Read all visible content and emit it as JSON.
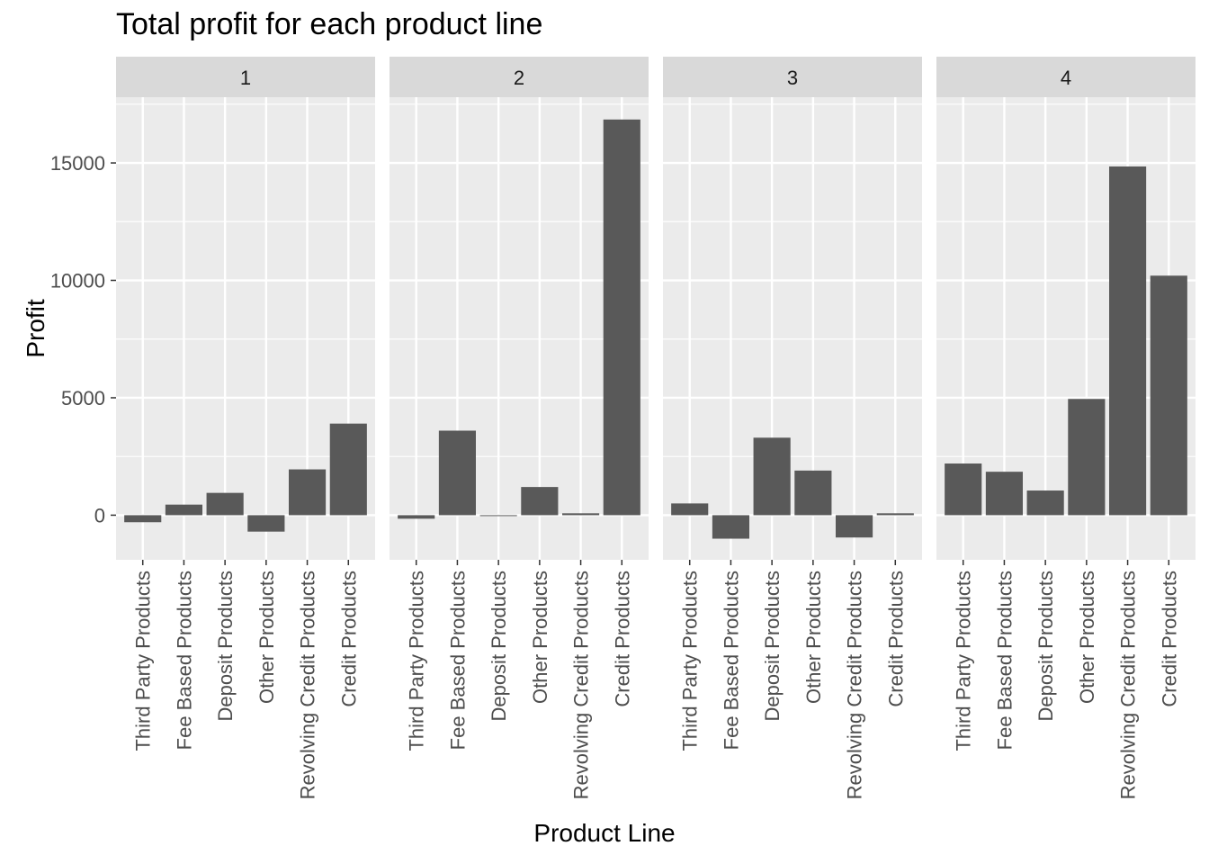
{
  "chart_data": {
    "type": "bar",
    "title": "Total profit for each product line",
    "xlabel": "Product Line",
    "ylabel": "Profit",
    "ylim": [
      -1900,
      17800
    ],
    "yticks": [
      0,
      5000,
      10000,
      15000
    ],
    "grid": true,
    "categories": [
      "Third Party Products",
      "Fee Based Products",
      "Deposit Products",
      "Other Products",
      "Revolving Credit Products",
      "Credit Products"
    ],
    "facets": [
      {
        "label": "1",
        "values": [
          -300,
          450,
          950,
          -700,
          1950,
          3900
        ]
      },
      {
        "label": "2",
        "values": [
          -150,
          3600,
          -30,
          1200,
          80,
          16850
        ]
      },
      {
        "label": "3",
        "values": [
          500,
          -1000,
          3300,
          1900,
          -950,
          80
        ]
      },
      {
        "label": "4",
        "values": [
          2200,
          1850,
          1050,
          4950,
          14850,
          10200
        ]
      }
    ]
  },
  "colors": {
    "panel_bg": "#ebebeb",
    "strip_bg": "#d9d9d9",
    "grid": "#ffffff",
    "bar": "#595959",
    "tick_text": "#4d4d4d",
    "tick_mark": "#333333"
  }
}
